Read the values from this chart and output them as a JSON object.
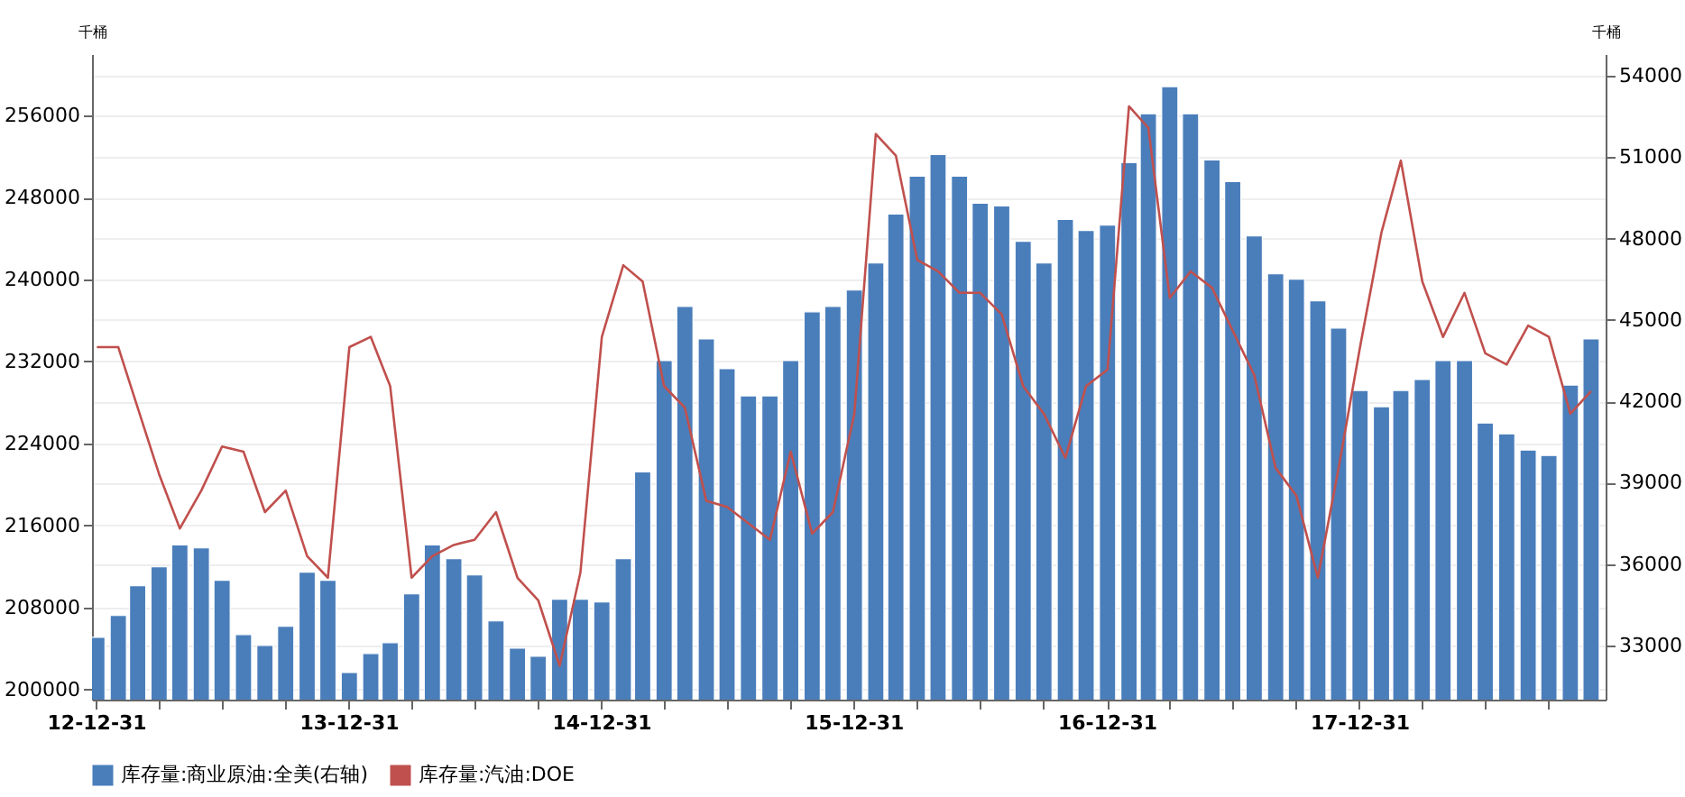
{
  "chart_data": {
    "type": "bar",
    "legend": "bottom",
    "grid": "y",
    "ylabel": "千桶",
    "y2label": "千桶",
    "x": [
      "2013-01",
      "2013-02",
      "2013-03",
      "2013-04",
      "2013-05",
      "2013-06",
      "2013-07",
      "2013-08",
      "2013-09",
      "2013-10",
      "2013-11",
      "2013-12",
      "2014-01",
      "2014-02",
      "2014-03",
      "2014-04",
      "2014-05",
      "2014-06",
      "2014-07",
      "2014-08",
      "2014-09",
      "2014-10",
      "2014-11",
      "2014-12",
      "2015-01",
      "2015-02",
      "2015-03",
      "2015-04",
      "2015-05",
      "2015-06",
      "2015-07",
      "2015-08",
      "2015-09",
      "2015-10",
      "2015-11",
      "2015-12",
      "2016-01",
      "2016-02",
      "2016-03",
      "2016-04",
      "2016-05",
      "2016-06",
      "2016-07",
      "2016-08",
      "2016-09",
      "2016-10",
      "2016-11",
      "2016-12",
      "2017-01",
      "2017-02",
      "2017-03",
      "2017-04",
      "2017-05",
      "2017-06",
      "2017-07",
      "2017-08",
      "2017-09",
      "2017-10",
      "2017-11",
      "2017-12",
      "2018-01",
      "2018-02",
      "2018-03",
      "2018-04",
      "2018-05",
      "2018-06",
      "2018-07",
      "2018-08",
      "2018-09",
      "2018-10",
      "2018-11",
      "2018-12"
    ],
    "xlim": [
      "2012-12-25",
      "2018-12-22"
    ],
    "xticks": [
      {
        "value": "2012-12-31",
        "label": "12-12-31"
      },
      {
        "value": "2013-03-31",
        "label": null
      },
      {
        "value": "2013-06-30",
        "label": null
      },
      {
        "value": "2013-09-30",
        "label": null
      },
      {
        "value": "2013-12-31",
        "label": "13-12-31"
      },
      {
        "value": "2014-03-31",
        "label": null
      },
      {
        "value": "2014-06-30",
        "label": null
      },
      {
        "value": "2014-09-30",
        "label": null
      },
      {
        "value": "2014-12-31",
        "label": "14-12-31"
      },
      {
        "value": "2015-03-31",
        "label": null
      },
      {
        "value": "2015-06-30",
        "label": null
      },
      {
        "value": "2015-09-30",
        "label": null
      },
      {
        "value": "2015-12-31",
        "label": "15-12-31"
      },
      {
        "value": "2016-03-31",
        "label": null
      },
      {
        "value": "2016-06-30",
        "label": null
      },
      {
        "value": "2016-09-30",
        "label": null
      },
      {
        "value": "2016-12-31",
        "label": "16-12-31"
      },
      {
        "value": "2017-03-31",
        "label": null
      },
      {
        "value": "2017-06-30",
        "label": null
      },
      {
        "value": "2017-09-30",
        "label": null
      },
      {
        "value": "2017-12-31",
        "label": "17-12-31"
      },
      {
        "value": "2018-03-31",
        "label": null
      },
      {
        "value": "2018-06-30",
        "label": null
      },
      {
        "value": "2018-09-30",
        "label": null
      }
    ],
    "ylim": [
      199000,
      262000
    ],
    "yticks": [
      200000,
      208000,
      216000,
      224000,
      232000,
      240000,
      248000,
      256000
    ],
    "y2lim": [
      31000,
      54800
    ],
    "y2ticks": [
      33000,
      36000,
      39000,
      42000,
      45000,
      48000,
      51000,
      54000
    ],
    "series": [
      {
        "name": "库存量:商业原油:全美(右轴)",
        "axis": "y2",
        "color": "#4a7ebb",
        "values": [
          33300,
          34100,
          35200,
          35900,
          36700,
          36600,
          35400,
          33400,
          33000,
          33700,
          35700,
          35400,
          32000,
          32700,
          33100,
          34900,
          36700,
          36200,
          35600,
          33900,
          32900,
          32600,
          34700,
          34700,
          34600,
          36200,
          39400,
          43500,
          45500,
          44300,
          43200,
          42200,
          42200,
          43500,
          45300,
          45500,
          46100,
          47100,
          48900,
          50300,
          51100,
          50300,
          49300,
          49200,
          47900,
          47100,
          48700,
          48300,
          48500,
          50800,
          52600,
          53600,
          52600,
          50900,
          50100,
          48100,
          46700,
          46500,
          45700,
          44700,
          42400,
          41800,
          42400,
          42800,
          43500,
          43500,
          41200,
          40800,
          40200,
          40000,
          42600,
          44300
        ]
      },
      {
        "name": "库存量:汽油:DOE",
        "type": "line",
        "color": "#c0504d",
        "values": [
          233400,
          233400,
          227500,
          221000,
          215700,
          219400,
          223700,
          223200,
          217300,
          219400,
          213000,
          210900,
          233400,
          234400,
          229600,
          210900,
          213000,
          214100,
          214600,
          217300,
          210900,
          208700,
          202300,
          211400,
          234400,
          241400,
          239800,
          229600,
          227500,
          218400,
          217800,
          216200,
          214600,
          223200,
          215200,
          217300,
          226900,
          254200,
          252100,
          241900,
          240800,
          238700,
          238700,
          236600,
          229600,
          226900,
          222600,
          229600,
          231200,
          256900,
          254800,
          238200,
          240800,
          239200,
          235000,
          230700,
          221600,
          218900,
          210900,
          221600,
          233400,
          244600,
          251600,
          239800,
          234400,
          238700,
          232800,
          231700,
          235500,
          234400,
          226900,
          229100
        ]
      }
    ]
  }
}
